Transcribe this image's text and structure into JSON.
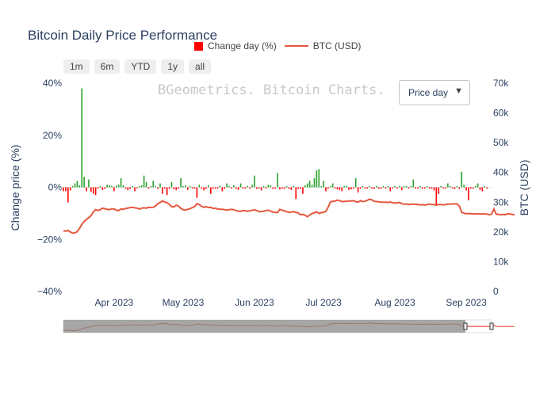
{
  "title": "Bitcoin Daily Price Performance",
  "watermark": "BGeometrics. Bitcoin Charts.",
  "range_buttons": [
    "1m",
    "6m",
    "YTD",
    "1y",
    "all"
  ],
  "dropdown": {
    "selected": "Price day"
  },
  "colors": {
    "up": "#2ca02c",
    "down": "#ff0000",
    "price": "#e5583e",
    "text": "#2a3f5f"
  },
  "chart_data": {
    "type": "bar",
    "title": "Bitcoin Daily Price Performance",
    "x_start": "2023-03-10",
    "x_end": "2023-09-12",
    "x_ticks": [
      "Apr 2023",
      "May 2023",
      "Jun 2023",
      "Jul 2023",
      "Aug 2023",
      "Sep 2023"
    ],
    "y_left": {
      "label": "Change price (%)",
      "range": [
        -40,
        40
      ],
      "ticks": [
        "40%",
        "20%",
        "0%",
        "−20%",
        "−40%"
      ]
    },
    "y_right": {
      "label": "BTC (USD)",
      "range": [
        0,
        70000
      ],
      "ticks": [
        "70k",
        "60k",
        "50k",
        "40k",
        "30k",
        "20k",
        "10k",
        "0"
      ]
    },
    "legend": [
      "Change day (%)",
      "BTC (USD)"
    ],
    "series": [
      {
        "name": "Change day (%)",
        "type": "bar",
        "values": [
          -1.5,
          -1.5,
          -5.8,
          -1.2,
          0.5,
          1.5,
          2.5,
          0.8,
          38,
          4,
          -1.5,
          3,
          -1.7,
          -2.5,
          -3,
          -0.5,
          0.5,
          -1,
          -0.6,
          1,
          0.8,
          0.6,
          -1.5,
          0.6,
          1,
          3.5,
          0.8,
          -0.5,
          -1.1,
          -0.6,
          0.5,
          -1.5,
          -0.4,
          0.5,
          0.8,
          4.5,
          2,
          -0.5,
          0.5,
          2.5,
          0.5,
          -0.6,
          1.5,
          -2.5,
          -0.5,
          -3,
          -0.6,
          2,
          -0.8,
          -1.1,
          -0.5,
          3.5,
          0.5,
          0.8,
          -1,
          0.5,
          -0.5,
          -0.5,
          -4,
          1,
          -0.5,
          -1.2,
          -0.6,
          0.8,
          -2.5,
          -0.6,
          -0.5,
          -0.5,
          0.6,
          -1.5,
          -0.6,
          1.5,
          0.5,
          -0.5,
          0.8,
          -0.6,
          -1,
          1.5,
          -0.5,
          -0.5,
          0.5,
          -0.5,
          1,
          4.5,
          -0.6,
          -0.5,
          -1.2,
          0.5,
          -0.5,
          1,
          0.8,
          -0.6,
          -0.5,
          5.5,
          -0.8,
          -0.5,
          -0.6,
          0.5,
          -0.6,
          -1,
          0.5,
          -4.5,
          -0.6,
          -0.6,
          -2.5,
          0.8,
          1.5,
          2.5,
          1,
          3.5,
          6.5,
          7,
          0.5,
          2.5,
          -1.5,
          -0.6,
          0.5,
          1.5,
          -0.5,
          -0.8,
          -1,
          -1.5,
          0.5,
          0.6,
          -1,
          -0.8,
          -0.5,
          3.5,
          -2,
          -0.6,
          0.5,
          -0.5,
          -0.5,
          0.5,
          -0.5,
          -0.6,
          0.5,
          -0.6,
          -0.5,
          0.5,
          -0.5,
          0.5,
          -1.5,
          -0.5,
          0.5,
          -0.5,
          0.5,
          -1.1,
          0.5,
          0.5,
          -0.5,
          0.5,
          3,
          -0.5,
          -0.5,
          0.5,
          -0.6,
          -0.5,
          0.5,
          -0.5,
          -0.5,
          -1.2,
          -7,
          -2.5,
          0.5,
          -0.5,
          -0.5,
          1.5,
          0.5,
          -0.5,
          -0.6,
          0.5,
          -0.6,
          6,
          1,
          -1.2,
          -5,
          -0.5,
          -0.5,
          0.5,
          1.5,
          -1,
          -1.5,
          0.5,
          -0.5
        ]
      },
      {
        "name": "BTC (USD)",
        "type": "line",
        "values": [
          20300,
          20300,
          20500,
          20000,
          19600,
          19700,
          20100,
          21200,
          22500,
          23500,
          24200,
          24800,
          25500,
          26700,
          27500,
          27200,
          27500,
          28000,
          27800,
          27600,
          27500,
          27800,
          27700,
          27300,
          27200,
          27700,
          27600,
          27900,
          28000,
          28200,
          28300,
          28100,
          28000,
          27700,
          28000,
          28100,
          28000,
          28300,
          28200,
          28300,
          28700,
          29500,
          29900,
          30400,
          30100,
          29800,
          29300,
          28500,
          28400,
          29000,
          28700,
          27900,
          27500,
          27400,
          27600,
          27800,
          28200,
          28500,
          29500,
          29200,
          28600,
          28300,
          28500,
          28200,
          28300,
          27900,
          28000,
          27700,
          27600,
          27600,
          27500,
          27300,
          27500,
          27600,
          27500,
          27200,
          27000,
          26900,
          27200,
          27100,
          27000,
          27100,
          27300,
          27400,
          27200,
          26800,
          26800,
          27000,
          27200,
          27300,
          27000,
          26700,
          26600,
          26500,
          27600,
          27300,
          27100,
          26800,
          26600,
          26700,
          26800,
          26600,
          26400,
          25800,
          25900,
          25600,
          25100,
          25700,
          26200,
          26400,
          26800,
          26200,
          26500,
          26600,
          27000,
          28300,
          30100,
          30300,
          30400,
          30700,
          30500,
          30200,
          30300,
          30300,
          30400,
          30400,
          30500,
          30200,
          30000,
          30500,
          30200,
          30300,
          30600,
          31000,
          30800,
          30300,
          30200,
          30100,
          30000,
          30000,
          30000,
          29900,
          30100,
          29800,
          29700,
          29800,
          29900,
          29500,
          29300,
          29400,
          29200,
          29300,
          29300,
          29300,
          29200,
          29100,
          29200,
          29000,
          29200,
          29400,
          29200,
          29200,
          29000,
          29200,
          29200,
          29100,
          29200,
          29400,
          29300,
          29400,
          29400,
          29400,
          28700,
          26600,
          26300,
          26100,
          26200,
          26100,
          26100,
          26000,
          26100,
          26000,
          26100,
          26000,
          26000,
          25800,
          26000,
          27700,
          26000,
          25900,
          25800,
          25900,
          25800,
          26100,
          26000,
          25900,
          25800
        ]
      }
    ],
    "grid": false,
    "legend_position": "top",
    "rangeslider": true
  }
}
